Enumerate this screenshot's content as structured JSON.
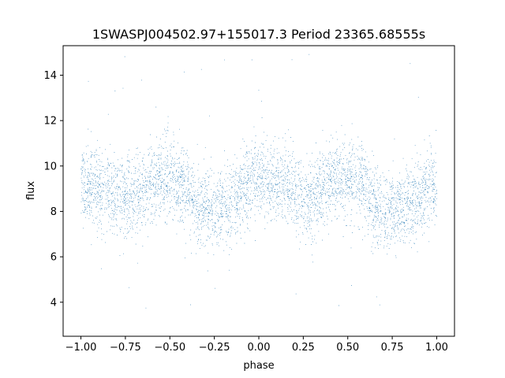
{
  "chart_data": {
    "type": "scatter",
    "title": "1SWASPJ004502.97+155017.3 Period 23365.68555s",
    "xlabel": "phase",
    "ylabel": "flux",
    "xlim": [
      -1.1,
      1.1
    ],
    "ylim": [
      2.5,
      15.3
    ],
    "x_ticks": [
      -1.0,
      -0.75,
      -0.5,
      -0.25,
      0.0,
      0.25,
      0.5,
      0.75,
      1.0
    ],
    "x_tick_labels": [
      "−1.00",
      "−0.75",
      "−0.50",
      "−0.25",
      "0.00",
      "0.25",
      "0.50",
      "0.75",
      "1.00"
    ],
    "y_ticks": [
      4,
      6,
      8,
      10,
      12,
      14
    ],
    "y_tick_labels": [
      "4",
      "6",
      "8",
      "10",
      "12",
      "14"
    ],
    "grid": false,
    "legend": "none",
    "marker_color": "#1f77b4",
    "series": [
      {
        "x_range": [
          -1.0,
          1.0
        ],
        "approx_count": 40000,
        "trend": {
          "phase": [
            -1.0,
            -0.85,
            -0.75,
            -0.55,
            -0.45,
            -0.3,
            -0.2,
            0.0,
            0.15,
            0.25,
            0.45,
            0.55,
            0.7,
            0.8,
            1.0
          ],
          "median_flux": [
            9.2,
            8.9,
            8.6,
            9.4,
            9.3,
            8.0,
            8.2,
            9.4,
            9.1,
            8.5,
            9.4,
            9.3,
            7.9,
            8.2,
            9.2
          ],
          "spread_sd": 0.85
        },
        "outlier_range": [
          3.0,
          15.0
        ]
      }
    ]
  }
}
